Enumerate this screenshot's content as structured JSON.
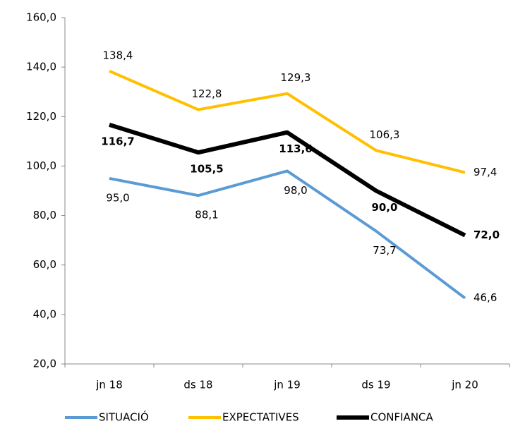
{
  "chart_data": {
    "type": "line",
    "categories": [
      "jn 18",
      "ds 18",
      "jn 19",
      "ds 19",
      "jn 20"
    ],
    "series": [
      {
        "name": "SITUACIÓ",
        "color": "#5b9bd5",
        "width": 4,
        "label_weight": "normal",
        "values": [
          95.0,
          88.1,
          98.0,
          73.7,
          46.6
        ],
        "value_labels": [
          "95,0",
          "88,1",
          "98,0",
          "73,7",
          "46,6"
        ]
      },
      {
        "name": "EXPECTATIVES",
        "color": "#ffc000",
        "width": 4,
        "label_weight": "normal",
        "values": [
          138.4,
          122.8,
          129.3,
          106.3,
          97.4
        ],
        "value_labels": [
          "138,4",
          "122,8",
          "129,3",
          "106,3",
          "97,4"
        ]
      },
      {
        "name": "CONFIANCA",
        "color": "#000000",
        "width": 6,
        "label_weight": "bold",
        "values": [
          116.7,
          105.5,
          113.6,
          90.0,
          72.0
        ],
        "value_labels": [
          "116,7",
          "105,5",
          "113,6",
          "90,0",
          "72,0"
        ]
      }
    ],
    "ylim": [
      20,
      160
    ],
    "yticks": [
      {
        "value": 20,
        "label": "20,0"
      },
      {
        "value": 40,
        "label": "40,0"
      },
      {
        "value": 60,
        "label": "60,0"
      },
      {
        "value": 80,
        "label": "80,0"
      },
      {
        "value": 100,
        "label": "100,0"
      },
      {
        "value": 120,
        "label": "120,0"
      },
      {
        "value": 140,
        "label": "140,0"
      },
      {
        "value": 160,
        "label": "160,0"
      }
    ],
    "grid": false,
    "legend": "bottom"
  }
}
